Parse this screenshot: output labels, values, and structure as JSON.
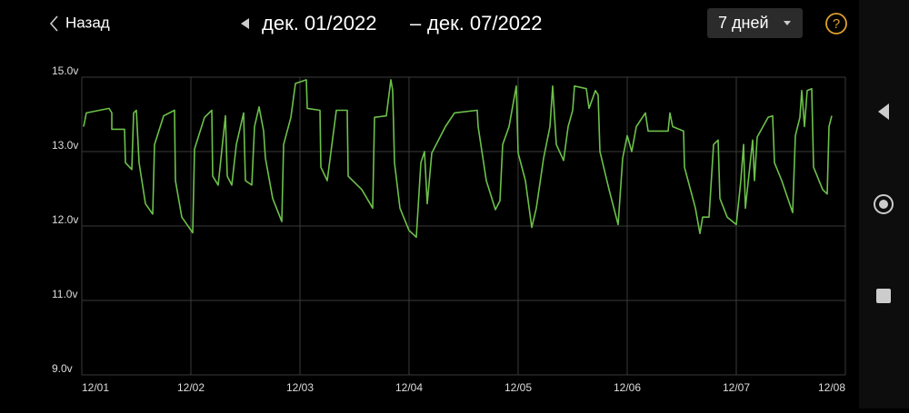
{
  "header": {
    "back": "Назад",
    "date_from": "дек. 01/2022",
    "separator": "–",
    "date_to": "дек. 07/2022",
    "period": "7 дней",
    "help": "?"
  },
  "chart_data": {
    "type": "line",
    "color": "#6cc04a",
    "grid": true,
    "xlim": [
      0,
      7
    ],
    "xticks": [
      {
        "value": 0,
        "label": "12/01"
      },
      {
        "value": 1,
        "label": "12/02"
      },
      {
        "value": 2,
        "label": "12/03"
      },
      {
        "value": 3,
        "label": "12/04"
      },
      {
        "value": 4,
        "label": "12/05"
      },
      {
        "value": 5,
        "label": "12/06"
      },
      {
        "value": 6,
        "label": "12/07"
      },
      {
        "value": 7,
        "label": "12/08"
      }
    ],
    "ylim": [
      9,
      15
    ],
    "yticks": [
      {
        "value": 15,
        "label": "15.0v"
      },
      {
        "value": 13,
        "label": "13.0v"
      },
      {
        "value": 12,
        "label": "12.0v"
      },
      {
        "value": 11,
        "label": "11.0v"
      },
      {
        "value": 9,
        "label": "9.0v"
      }
    ],
    "x": [
      0.017,
      0.042,
      0.25,
      0.275,
      0.275,
      0.392,
      0.4,
      0.458,
      0.475,
      0.5,
      0.525,
      0.583,
      0.65,
      0.667,
      0.75,
      0.85,
      0.858,
      0.917,
      1.017,
      1.033,
      1.125,
      1.192,
      1.2,
      1.25,
      1.317,
      1.333,
      1.375,
      1.417,
      1.483,
      1.5,
      1.558,
      1.583,
      1.625,
      1.667,
      1.683,
      1.75,
      1.833,
      1.85,
      1.917,
      1.958,
      2.058,
      2.067,
      2.183,
      2.192,
      2.25,
      2.333,
      2.433,
      2.442,
      2.567,
      2.667,
      2.683,
      2.792,
      2.833,
      2.85,
      2.867,
      2.917,
      3,
      3.067,
      3.108,
      3.142,
      3.167,
      3.208,
      3.333,
      3.417,
      3.625,
      3.633,
      3.708,
      3.792,
      3.833,
      3.858,
      3.917,
      3.983,
      4,
      4.067,
      4.125,
      4.167,
      4.233,
      4.292,
      4.317,
      4.35,
      4.417,
      4.458,
      4.5,
      4.517,
      4.625,
      4.65,
      4.708,
      4.733,
      4.75,
      4.833,
      4.917,
      4.958,
      5,
      5.042,
      5.083,
      5.167,
      5.192,
      5.375,
      5.392,
      5.417,
      5.517,
      5.525,
      5.625,
      5.667,
      5.692,
      5.75,
      5.792,
      5.833,
      5.85,
      5.917,
      6,
      6.042,
      6.067,
      6.083,
      6.15,
      6.167,
      6.192,
      6.292,
      6.333,
      6.35,
      6.417,
      6.517,
      6.542,
      6.583,
      6.6,
      6.625,
      6.65,
      6.692,
      6.708,
      6.792,
      6.833,
      6.85,
      6.875
    ],
    "values": [
      13.67,
      14.04,
      14.16,
      14.04,
      13.6,
      13.6,
      12.85,
      12.76,
      14.04,
      14.11,
      12.85,
      12.3,
      12.16,
      13.19,
      13.96,
      14.11,
      12.61,
      12.12,
      11.91,
      13.07,
      13.92,
      14.11,
      12.67,
      12.55,
      13.96,
      12.67,
      12.55,
      13.19,
      14.04,
      12.61,
      12.55,
      13.67,
      14.2,
      13.55,
      12.91,
      12.37,
      12.06,
      13.19,
      13.92,
      14.83,
      14.93,
      14.16,
      14.11,
      12.79,
      12.61,
      14.11,
      14.11,
      12.67,
      12.49,
      12.24,
      13.92,
      13.96,
      14.93,
      14.64,
      12.85,
      12.24,
      11.94,
      11.85,
      12.85,
      13.0,
      12.3,
      12.98,
      13.67,
      14.04,
      14.11,
      13.67,
      12.61,
      12.22,
      12.34,
      13.19,
      13.67,
      14.76,
      12.98,
      12.61,
      11.98,
      12.24,
      12.91,
      13.67,
      14.76,
      13.19,
      12.88,
      13.67,
      14.11,
      14.76,
      14.69,
      14.16,
      14.64,
      14.52,
      13.0,
      12.49,
      12.02,
      12.91,
      13.43,
      13.0,
      13.67,
      14.04,
      13.55,
      13.55,
      14.04,
      13.67,
      13.55,
      12.79,
      12.24,
      11.9,
      12.12,
      12.12,
      13.19,
      13.31,
      12.37,
      12.12,
      12.02,
      12.61,
      13.19,
      12.24,
      13.31,
      12.61,
      13.39,
      13.92,
      13.96,
      12.85,
      12.61,
      12.18,
      13.43,
      13.92,
      14.64,
      13.67,
      14.64,
      14.69,
      12.79,
      12.49,
      12.43,
      13.67,
      13.96
    ]
  }
}
